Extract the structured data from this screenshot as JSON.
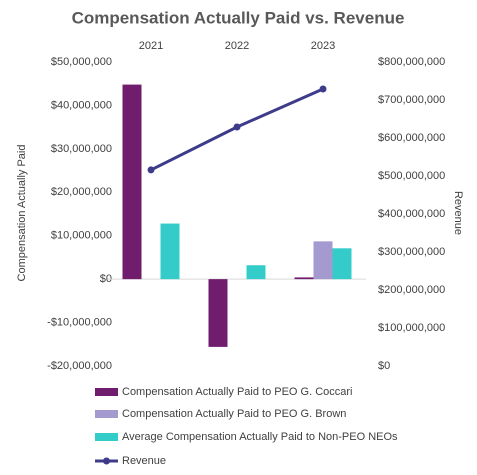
{
  "chart_data": {
    "type": "bar",
    "title": "Compensation Actually Paid vs. Revenue",
    "categories": [
      "2021",
      "2022",
      "2023"
    ],
    "ylabel": "Compensation Actually Paid",
    "y2label": "Revenue",
    "ylim": [
      -20000000,
      50000000
    ],
    "yticks": [
      {
        "value": -20000000,
        "label": "-$20,000,000"
      },
      {
        "value": -10000000,
        "label": "-$10,000,000"
      },
      {
        "value": 0,
        "label": "$0"
      },
      {
        "value": 10000000,
        "label": "$10,000,000"
      },
      {
        "value": 20000000,
        "label": "$20,000,000"
      },
      {
        "value": 30000000,
        "label": "$30,000,000"
      },
      {
        "value": 40000000,
        "label": "$40,000,000"
      },
      {
        "value": 50000000,
        "label": "$50,000,000"
      }
    ],
    "y2lim": [
      0,
      800000000
    ],
    "y2ticks": [
      {
        "value": 0,
        "label": "$0"
      },
      {
        "value": 100000000,
        "label": "$100,000,000"
      },
      {
        "value": 200000000,
        "label": "$200,000,000"
      },
      {
        "value": 300000000,
        "label": "$300,000,000"
      },
      {
        "value": 400000000,
        "label": "$400,000,000"
      },
      {
        "value": 500000000,
        "label": "$500,000,000"
      },
      {
        "value": 600000000,
        "label": "$600,000,000"
      },
      {
        "value": 700000000,
        "label": "$700,000,000"
      },
      {
        "value": 800000000,
        "label": "$800,000,000"
      }
    ],
    "legend": "bottom",
    "series": [
      {
        "name": "Compensation Actually Paid to PEO G. Coccari",
        "type": "bar",
        "color": "#701d6e",
        "values": [
          44800000,
          -15600000,
          400000
        ]
      },
      {
        "name": "Compensation Actually Paid to PEO G. Brown",
        "type": "bar",
        "color": "#a49ad0",
        "values": [
          null,
          null,
          8700000
        ]
      },
      {
        "name": "Average Compensation Actually Paid to Non-PEO NEOs",
        "type": "bar",
        "color": "#33ccc9",
        "values": [
          12800000,
          3200000,
          7100000
        ]
      },
      {
        "name": "Revenue",
        "type": "line",
        "axis": "y2",
        "color": "#3e3b8a",
        "values": [
          516000000,
          629000000,
          729000000
        ]
      }
    ]
  }
}
